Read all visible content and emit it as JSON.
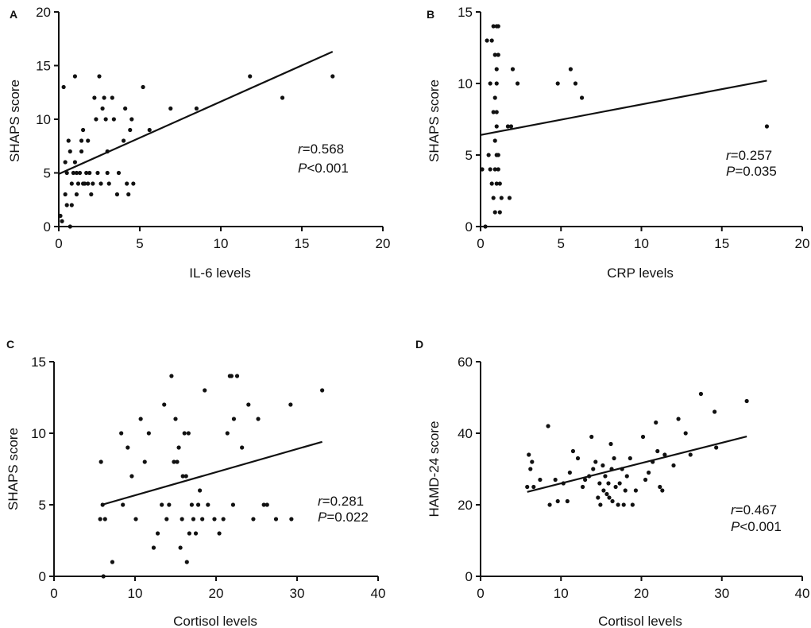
{
  "figure": {
    "background": "#ffffff",
    "ink": "#111111"
  },
  "chart_data": [
    {
      "panel": "A",
      "type": "scatter",
      "xlabel": "IL-6 levels",
      "ylabel": "SHAPS score",
      "xlim": [
        0,
        20
      ],
      "ylim": [
        0,
        20
      ],
      "xticks": [
        0,
        5,
        10,
        15,
        20
      ],
      "yticks": [
        0,
        5,
        10,
        15,
        20
      ],
      "grid": false,
      "fit_line": {
        "x": [
          0,
          16.9
        ],
        "y": [
          4.9,
          16.3
        ]
      },
      "stats": {
        "r_label": "r",
        "r_text": "=0.568",
        "p_label": "P",
        "p_text": "<0.001"
      },
      "points": [
        [
          0.1,
          1
        ],
        [
          0.2,
          0.5
        ],
        [
          0.3,
          13
        ],
        [
          0.4,
          6
        ],
        [
          0.4,
          3
        ],
        [
          0.5,
          2
        ],
        [
          0.5,
          5
        ],
        [
          0.6,
          8
        ],
        [
          0.7,
          0
        ],
        [
          0.7,
          7
        ],
        [
          0.8,
          2
        ],
        [
          0.8,
          4
        ],
        [
          0.9,
          5
        ],
        [
          1.0,
          14
        ],
        [
          1.0,
          6
        ],
        [
          1.1,
          3
        ],
        [
          1.1,
          5
        ],
        [
          1.2,
          4
        ],
        [
          1.3,
          5
        ],
        [
          1.4,
          8
        ],
        [
          1.4,
          7
        ],
        [
          1.5,
          9
        ],
        [
          1.5,
          4
        ],
        [
          1.6,
          4
        ],
        [
          1.7,
          5
        ],
        [
          1.8,
          8
        ],
        [
          1.8,
          4
        ],
        [
          1.9,
          5
        ],
        [
          2.0,
          3
        ],
        [
          2.1,
          4
        ],
        [
          2.2,
          12
        ],
        [
          2.3,
          10
        ],
        [
          2.4,
          5
        ],
        [
          2.5,
          14
        ],
        [
          2.6,
          4
        ],
        [
          2.7,
          11
        ],
        [
          2.8,
          12
        ],
        [
          2.9,
          10
        ],
        [
          3.0,
          7
        ],
        [
          3.0,
          5
        ],
        [
          3.1,
          4
        ],
        [
          3.3,
          12
        ],
        [
          3.4,
          10
        ],
        [
          3.6,
          3
        ],
        [
          3.7,
          5
        ],
        [
          4.0,
          8
        ],
        [
          4.1,
          11
        ],
        [
          4.2,
          4
        ],
        [
          4.3,
          3
        ],
        [
          4.4,
          9
        ],
        [
          4.5,
          10
        ],
        [
          4.6,
          4
        ],
        [
          5.2,
          13
        ],
        [
          5.6,
          9
        ],
        [
          6.9,
          11
        ],
        [
          8.5,
          11
        ],
        [
          11.8,
          14
        ],
        [
          13.8,
          12
        ],
        [
          16.9,
          14
        ]
      ]
    },
    {
      "panel": "B",
      "type": "scatter",
      "xlabel": "CRP levels",
      "ylabel": "SHAPS score",
      "xlim": [
        0,
        20
      ],
      "ylim": [
        0,
        15
      ],
      "xticks": [
        0,
        5,
        10,
        15,
        20
      ],
      "yticks": [
        0,
        5,
        10,
        15
      ],
      "grid": false,
      "fit_line": {
        "x": [
          0,
          17.8
        ],
        "y": [
          6.4,
          10.2
        ]
      },
      "stats": {
        "r_label": "r",
        "r_text": "=0.257",
        "p_label": "P",
        "p_text": "=0.035"
      },
      "points": [
        [
          0.1,
          4
        ],
        [
          0.3,
          0
        ],
        [
          0.4,
          13
        ],
        [
          0.5,
          5
        ],
        [
          0.6,
          10
        ],
        [
          0.6,
          4
        ],
        [
          0.7,
          13
        ],
        [
          0.7,
          3
        ],
        [
          0.8,
          8
        ],
        [
          0.8,
          2
        ],
        [
          0.8,
          14
        ],
        [
          0.9,
          12
        ],
        [
          0.9,
          9
        ],
        [
          0.9,
          6
        ],
        [
          0.9,
          4
        ],
        [
          0.9,
          1
        ],
        [
          1.0,
          14
        ],
        [
          1.0,
          11
        ],
        [
          1.0,
          10
        ],
        [
          1.0,
          8
        ],
        [
          1.0,
          5
        ],
        [
          1.0,
          3
        ],
        [
          1.0,
          7
        ],
        [
          1.1,
          14
        ],
        [
          1.1,
          12
        ],
        [
          1.1,
          5
        ],
        [
          1.1,
          4
        ],
        [
          1.2,
          3
        ],
        [
          1.2,
          1
        ],
        [
          1.3,
          2
        ],
        [
          1.7,
          7
        ],
        [
          1.8,
          2
        ],
        [
          1.9,
          7
        ],
        [
          2.0,
          11
        ],
        [
          2.3,
          10
        ],
        [
          4.8,
          10
        ],
        [
          5.6,
          11
        ],
        [
          5.9,
          10
        ],
        [
          6.3,
          9
        ],
        [
          17.8,
          7
        ]
      ]
    },
    {
      "panel": "C",
      "type": "scatter",
      "xlabel": "Cortisol levels",
      "ylabel": "SHAPS score",
      "xlim": [
        0,
        40
      ],
      "ylim": [
        0,
        15
      ],
      "xticks": [
        0,
        10,
        20,
        30,
        40
      ],
      "yticks": [
        0,
        5,
        10,
        15
      ],
      "grid": false,
      "fit_line": {
        "x": [
          5.9,
          33.1
        ],
        "y": [
          5.0,
          9.4
        ]
      },
      "stats": {
        "r_label": "r",
        "r_text": "=0.281",
        "p_label": "P",
        "p_text": "=0.022"
      },
      "points": [
        [
          5.7,
          4
        ],
        [
          5.8,
          8
        ],
        [
          6.0,
          5
        ],
        [
          6.1,
          0
        ],
        [
          6.3,
          4
        ],
        [
          7.2,
          1
        ],
        [
          8.3,
          10
        ],
        [
          8.5,
          5
        ],
        [
          9.1,
          9
        ],
        [
          9.6,
          7
        ],
        [
          10.1,
          4
        ],
        [
          10.7,
          11
        ],
        [
          11.2,
          8
        ],
        [
          11.7,
          10
        ],
        [
          12.3,
          2
        ],
        [
          12.8,
          3
        ],
        [
          13.3,
          5
        ],
        [
          13.6,
          12
        ],
        [
          13.9,
          4
        ],
        [
          14.2,
          5
        ],
        [
          14.5,
          14
        ],
        [
          14.8,
          8
        ],
        [
          15.0,
          11
        ],
        [
          15.2,
          8
        ],
        [
          15.4,
          9
        ],
        [
          15.6,
          2
        ],
        [
          15.8,
          4
        ],
        [
          15.9,
          7
        ],
        [
          16.1,
          10
        ],
        [
          16.3,
          7
        ],
        [
          16.4,
          1
        ],
        [
          16.6,
          10
        ],
        [
          16.7,
          3
        ],
        [
          17.0,
          5
        ],
        [
          17.2,
          4
        ],
        [
          17.5,
          3
        ],
        [
          17.8,
          5
        ],
        [
          18.0,
          6
        ],
        [
          18.3,
          4
        ],
        [
          18.6,
          13
        ],
        [
          19.0,
          5
        ],
        [
          19.8,
          4
        ],
        [
          20.4,
          3
        ],
        [
          20.9,
          4
        ],
        [
          21.4,
          10
        ],
        [
          21.7,
          14
        ],
        [
          21.9,
          14
        ],
        [
          22.1,
          5
        ],
        [
          22.2,
          11
        ],
        [
          22.6,
          14
        ],
        [
          23.2,
          9
        ],
        [
          24.0,
          12
        ],
        [
          24.6,
          4
        ],
        [
          25.2,
          11
        ],
        [
          25.9,
          5
        ],
        [
          26.3,
          5
        ],
        [
          27.4,
          4
        ],
        [
          29.3,
          4
        ],
        [
          29.2,
          12
        ],
        [
          33.1,
          13
        ]
      ]
    },
    {
      "panel": "D",
      "type": "scatter",
      "xlabel": "Cortisol levels",
      "ylabel": "HAMD-24 score",
      "xlim": [
        0,
        40
      ],
      "ylim": [
        0,
        60
      ],
      "xticks": [
        0,
        10,
        20,
        30,
        40
      ],
      "yticks": [
        0,
        20,
        40,
        60
      ],
      "grid": false,
      "fit_line": {
        "x": [
          5.8,
          33.1
        ],
        "y": [
          23.6,
          39.1
        ]
      },
      "stats": {
        "r_label": "r",
        "r_text": "=0.467",
        "p_label": "P",
        "p_text": "<0.001"
      },
      "points": [
        [
          5.8,
          25
        ],
        [
          6.0,
          34
        ],
        [
          6.2,
          30
        ],
        [
          6.4,
          32
        ],
        [
          6.6,
          25
        ],
        [
          7.4,
          27
        ],
        [
          8.4,
          42
        ],
        [
          8.6,
          20
        ],
        [
          9.3,
          27
        ],
        [
          9.6,
          21
        ],
        [
          10.3,
          26
        ],
        [
          10.8,
          21
        ],
        [
          11.1,
          29
        ],
        [
          11.5,
          35
        ],
        [
          12.1,
          33
        ],
        [
          12.7,
          25
        ],
        [
          13.0,
          27
        ],
        [
          13.5,
          28
        ],
        [
          13.8,
          39
        ],
        [
          14.0,
          30
        ],
        [
          14.3,
          32
        ],
        [
          14.6,
          22
        ],
        [
          14.8,
          26
        ],
        [
          14.9,
          20
        ],
        [
          15.2,
          31
        ],
        [
          15.3,
          24
        ],
        [
          15.5,
          28
        ],
        [
          15.7,
          23
        ],
        [
          15.9,
          26
        ],
        [
          16.0,
          22
        ],
        [
          16.2,
          37
        ],
        [
          16.3,
          30
        ],
        [
          16.4,
          21
        ],
        [
          16.6,
          33
        ],
        [
          16.8,
          25
        ],
        [
          17.1,
          20
        ],
        [
          17.3,
          26
        ],
        [
          17.6,
          30
        ],
        [
          17.8,
          20
        ],
        [
          18.0,
          24
        ],
        [
          18.2,
          28
        ],
        [
          18.6,
          33
        ],
        [
          18.9,
          20
        ],
        [
          19.3,
          24
        ],
        [
          20.2,
          39
        ],
        [
          20.5,
          27
        ],
        [
          20.9,
          29
        ],
        [
          21.4,
          32
        ],
        [
          21.8,
          43
        ],
        [
          22.0,
          35
        ],
        [
          22.3,
          25
        ],
        [
          22.6,
          24
        ],
        [
          22.9,
          34
        ],
        [
          24.0,
          31
        ],
        [
          24.6,
          44
        ],
        [
          25.5,
          40
        ],
        [
          26.1,
          34
        ],
        [
          27.4,
          51
        ],
        [
          29.3,
          36
        ],
        [
          29.1,
          46
        ],
        [
          33.1,
          49
        ]
      ]
    }
  ]
}
